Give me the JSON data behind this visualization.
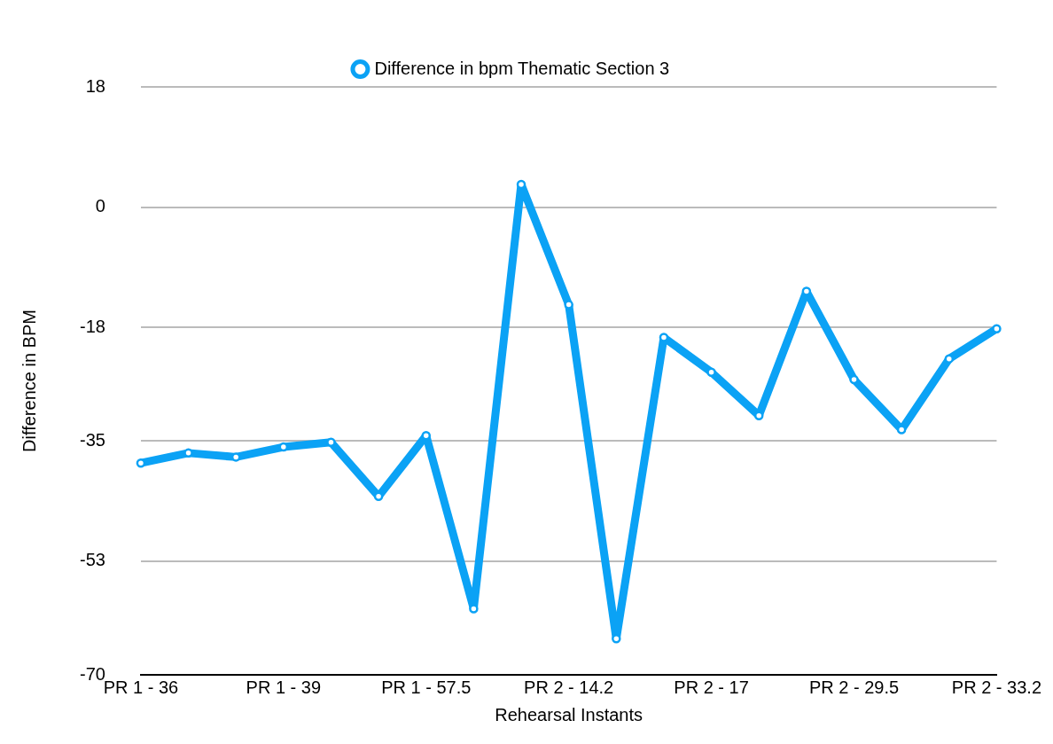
{
  "chart_data": {
    "type": "line",
    "xlabel": "Rehearsal Instants",
    "ylabel": "Difference in BPM",
    "categories": [
      "PR 1 - 36",
      null,
      null,
      "PR 1 - 39",
      null,
      null,
      "PR 1 - 57.5",
      null,
      null,
      "PR 2 - 14.2",
      null,
      null,
      "PR 2 - 17",
      null,
      null,
      "PR 2 - 29.5",
      null,
      null,
      "PR 2 - 33.2"
    ],
    "series": [
      {
        "name": "Difference in bpm Thematic Section 3",
        "color": "#0ba2f5",
        "values": [
          -38.3,
          -36.8,
          -37.4,
          -35.9,
          -35.2,
          -43.3,
          -34.2,
          -60.1,
          3.4,
          -14.6,
          -64.6,
          -19.5,
          -24.7,
          -31.2,
          -12.6,
          -25.8,
          -33.3,
          -22.7,
          -18.2
        ]
      }
    ],
    "ylim": [
      -70,
      18
    ],
    "yticks": [
      18,
      0,
      -18,
      -35,
      -53,
      -70
    ],
    "grid": "y",
    "legend": "top",
    "marker": "circle",
    "line_style": "solid"
  }
}
